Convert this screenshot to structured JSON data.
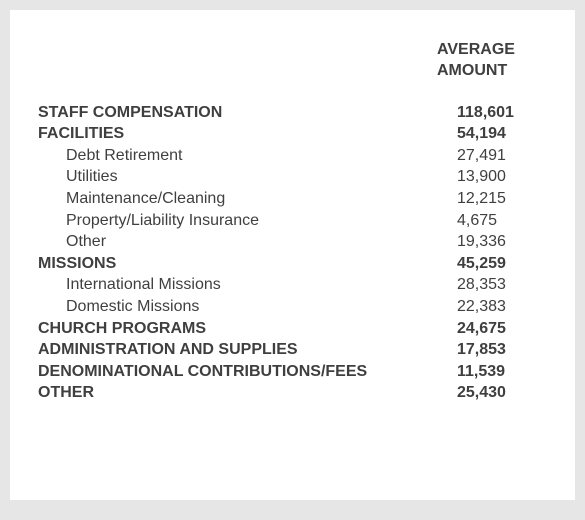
{
  "header": {
    "line1": "AVERAGE",
    "line2": "AMOUNT"
  },
  "rows": [
    {
      "label": "STAFF COMPENSATION",
      "value": "118,601",
      "bold": true,
      "sub": false
    },
    {
      "label": "FACILITIES",
      "value": "54,194",
      "bold": true,
      "sub": false
    },
    {
      "label": "Debt Retirement",
      "value": "27,491",
      "bold": false,
      "sub": true
    },
    {
      "label": "Utilities",
      "value": "13,900",
      "bold": false,
      "sub": true
    },
    {
      "label": "Maintenance/Cleaning",
      "value": "12,215",
      "bold": false,
      "sub": true
    },
    {
      "label": "Property/Liability Insurance",
      "value": "4,675",
      "bold": false,
      "sub": true
    },
    {
      "label": "Other",
      "value": "19,336",
      "bold": false,
      "sub": true
    },
    {
      "label": "MISSIONS",
      "value": "45,259",
      "bold": true,
      "sub": false
    },
    {
      "label": "International Missions",
      "value": "28,353",
      "bold": false,
      "sub": true
    },
    {
      "label": "Domestic Missions",
      "value": "22,383",
      "bold": false,
      "sub": true
    },
    {
      "label": "CHURCH PROGRAMS",
      "value": "24,675",
      "bold": true,
      "sub": false
    },
    {
      "label": "ADMINISTRATION AND SUPPLIES",
      "value": "17,853",
      "bold": true,
      "sub": false
    },
    {
      "label": "DENOMINATIONAL CONTRIBUTIONS/FEES",
      "value": "11,539",
      "bold": true,
      "sub": false
    },
    {
      "label": "OTHER",
      "value": "25,430",
      "bold": true,
      "sub": false
    }
  ]
}
